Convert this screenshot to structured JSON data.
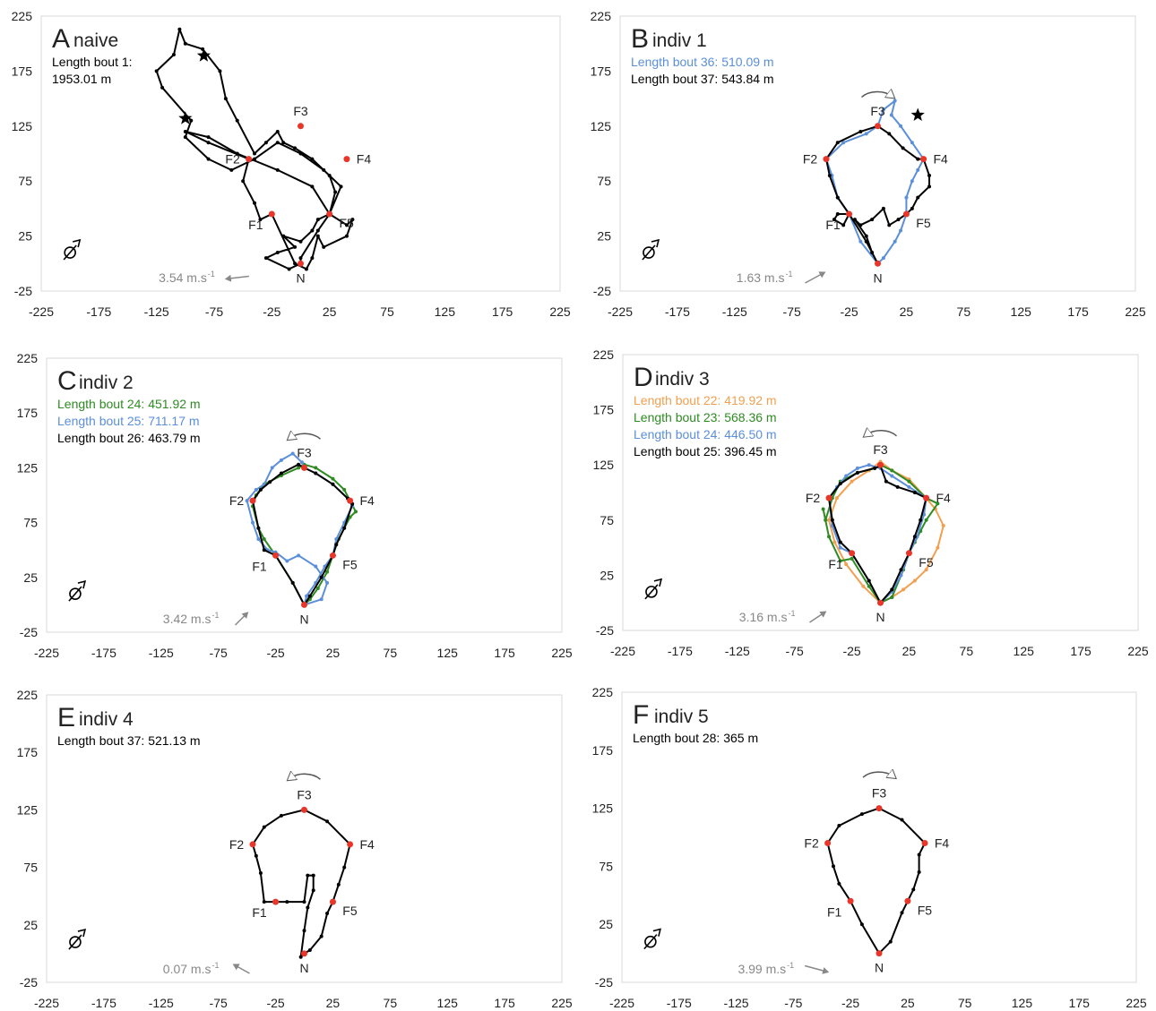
{
  "chart_data": [
    {
      "type": "line",
      "panel": "A",
      "title": "naive",
      "xlim": [
        -225,
        225
      ],
      "ylim": [
        -25,
        225
      ],
      "xticks": [
        -225,
        -175,
        -125,
        -75,
        -25,
        25,
        75,
        125,
        175,
        225
      ],
      "yticks": [
        -25,
        25,
        75,
        125,
        175,
        225
      ],
      "series": [
        {
          "name": "Length bout 1: 1953.01 m",
          "color": "#000000",
          "x": [
            0,
            -10,
            -30,
            -20,
            -5,
            -15,
            0,
            10,
            15,
            25,
            35,
            20,
            0,
            -20,
            -40,
            -60,
            -80,
            -100,
            -95,
            -120,
            -125,
            -110,
            -105,
            -100,
            -85,
            -70,
            -65,
            -55,
            -40,
            -30,
            -20,
            -15,
            -5,
            10,
            25,
            30,
            25,
            40,
            45,
            40,
            20,
            15,
            10,
            5,
            -5,
            -25,
            -35,
            -40,
            -50,
            -45,
            -80,
            -100,
            -80,
            -55,
            -20,
            10,
            25,
            15,
            0,
            0
          ],
          "y": [
            0,
            -5,
            5,
            10,
            15,
            25,
            20,
            30,
            40,
            45,
            70,
            85,
            100,
            110,
            95,
            85,
            95,
            115,
            130,
            160,
            175,
            190,
            213,
            200,
            195,
            175,
            150,
            130,
            100,
            110,
            120,
            110,
            105,
            95,
            80,
            65,
            45,
            35,
            40,
            25,
            15,
            25,
            5,
            -5,
            0,
            45,
            40,
            55,
            75,
            95,
            110,
            120,
            115,
            100,
            85,
            70,
            45,
            30,
            5,
            0
          ]
        }
      ],
      "points": {
        "labels": [
          "F1",
          "F2",
          "F3",
          "F4",
          "F5",
          "N"
        ],
        "x": [
          -25,
          -45,
          0,
          40,
          25,
          0
        ],
        "y": [
          45,
          95,
          125,
          95,
          45,
          0
        ],
        "color": "#e8362a"
      },
      "stars": {
        "x": [
          -84,
          -100
        ],
        "y": [
          189,
          132
        ]
      },
      "wind": {
        "label": "3.54 m.s",
        "superscript": "-1"
      }
    },
    {
      "type": "line",
      "panel": "B",
      "title": "indiv 1",
      "xlim": [
        -225,
        225
      ],
      "ylim": [
        -25,
        225
      ],
      "xticks": [
        -225,
        -175,
        -125,
        -75,
        -25,
        25,
        75,
        125,
        175,
        225
      ],
      "yticks": [
        -25,
        25,
        75,
        125,
        175,
        225
      ],
      "series": [
        {
          "name": "Length bout 36: 510.09 m",
          "color": "#5b8fd9",
          "x": [
            0,
            -15,
            -25,
            -35,
            -40,
            -45,
            -30,
            -10,
            0,
            5,
            15,
            12,
            20,
            30,
            40,
            35,
            30,
            25,
            25,
            20,
            15,
            5,
            0
          ],
          "y": [
            0,
            20,
            45,
            60,
            80,
            95,
            110,
            118,
            125,
            140,
            148,
            135,
            125,
            110,
            95,
            85,
            75,
            60,
            45,
            30,
            20,
            5,
            0
          ]
        },
        {
          "name": "Length bout 37: 543.84 m",
          "color": "#000000",
          "x": [
            0,
            -10,
            -25,
            -30,
            -38,
            -35,
            -25,
            -35,
            -42,
            -45,
            -35,
            -15,
            0,
            10,
            22,
            35,
            40,
            45,
            45,
            35,
            30,
            25,
            18,
            10,
            5,
            -5,
            -15,
            -20,
            -10,
            -5,
            0
          ],
          "y": [
            0,
            20,
            45,
            35,
            40,
            45,
            45,
            60,
            80,
            95,
            110,
            120,
            125,
            118,
            105,
            95,
            95,
            80,
            70,
            60,
            50,
            45,
            40,
            35,
            50,
            40,
            35,
            40,
            25,
            10,
            0
          ]
        }
      ],
      "points": {
        "labels": [
          "F1",
          "F2",
          "F3",
          "F4",
          "F5",
          "N"
        ],
        "x": [
          -25,
          -45,
          0,
          40,
          25,
          0
        ],
        "y": [
          45,
          95,
          125,
          95,
          45,
          0
        ],
        "color": "#e8362a"
      },
      "stars": {
        "x": [
          35
        ],
        "y": [
          135
        ]
      },
      "wind": {
        "label": "1.63 m.s",
        "superscript": "-1"
      }
    },
    {
      "type": "line",
      "panel": "C",
      "title": "indiv 2",
      "xlim": [
        -225,
        225
      ],
      "ylim": [
        -25,
        225
      ],
      "xticks": [
        -225,
        -175,
        -125,
        -75,
        -25,
        25,
        75,
        125,
        175,
        225
      ],
      "yticks": [
        -25,
        25,
        75,
        125,
        175,
        225
      ],
      "series": [
        {
          "name": "Length bout 24: 451.92 m",
          "color": "#2e8b22",
          "x": [
            0,
            -10,
            -25,
            -35,
            -40,
            -45,
            -42,
            -35,
            -20,
            -5,
            0,
            10,
            25,
            35,
            40,
            45,
            40,
            30,
            25,
            20,
            12,
            5,
            0
          ],
          "y": [
            0,
            20,
            45,
            60,
            70,
            90,
            100,
            110,
            118,
            125,
            128,
            125,
            115,
            105,
            95,
            85,
            80,
            60,
            45,
            30,
            15,
            5,
            0
          ]
        },
        {
          "name": "Length bout 25: 711.17 m",
          "color": "#5b8fd9",
          "x": [
            0,
            15,
            20,
            10,
            -5,
            -15,
            -25,
            -32,
            -40,
            -45,
            -50,
            -42,
            -35,
            -28,
            -20,
            -10,
            -2,
            0,
            10,
            25,
            38,
            42,
            35,
            28,
            25,
            18,
            10,
            2,
            0
          ],
          "y": [
            0,
            5,
            20,
            35,
            45,
            40,
            48,
            50,
            60,
            75,
            95,
            105,
            110,
            125,
            132,
            138,
            130,
            125,
            120,
            110,
            97,
            90,
            75,
            60,
            45,
            35,
            20,
            8,
            0
          ]
        },
        {
          "name": "Length bout 26: 463.79 m",
          "color": "#000000",
          "x": [
            0,
            -10,
            -25,
            -35,
            -40,
            -45,
            -38,
            -30,
            -20,
            -5,
            0,
            10,
            25,
            38,
            42,
            35,
            28,
            25,
            15,
            5,
            0
          ],
          "y": [
            0,
            20,
            45,
            50,
            70,
            95,
            105,
            112,
            120,
            128,
            125,
            120,
            110,
            97,
            92,
            70,
            55,
            45,
            25,
            8,
            0
          ]
        }
      ],
      "points": {
        "labels": [
          "F1",
          "F2",
          "F3",
          "F4",
          "F5",
          "N"
        ],
        "x": [
          -25,
          -45,
          0,
          40,
          25,
          0
        ],
        "y": [
          45,
          95,
          125,
          95,
          45,
          0
        ],
        "color": "#e8362a"
      },
      "wind": {
        "label": "3.42 m.s",
        "superscript": "-1"
      }
    },
    {
      "type": "line",
      "panel": "D",
      "title": "indiv 3",
      "xlim": [
        -225,
        225
      ],
      "ylim": [
        -25,
        225
      ],
      "xticks": [
        -225,
        -175,
        -125,
        -75,
        -25,
        25,
        75,
        125,
        175,
        225
      ],
      "yticks": [
        -25,
        25,
        75,
        125,
        175,
        225
      ],
      "series": [
        {
          "name": "Length bout 22: 419.92 m",
          "color": "#f0a050",
          "x": [
            0,
            -15,
            -30,
            -40,
            -45,
            -38,
            -25,
            -10,
            0,
            10,
            25,
            40,
            48,
            55,
            50,
            40,
            30,
            20,
            10,
            0
          ],
          "y": [
            0,
            15,
            35,
            55,
            75,
            95,
            110,
            120,
            128,
            120,
            112,
            95,
            85,
            70,
            50,
            30,
            20,
            12,
            5,
            0
          ]
        },
        {
          "name": "Length bout 23: 568.36 m",
          "color": "#2e8b22",
          "x": [
            0,
            -10,
            -25,
            -35,
            -45,
            -50,
            -48,
            -42,
            -35,
            -20,
            -5,
            0,
            10,
            25,
            40,
            50,
            40,
            35,
            30,
            25,
            20,
            10,
            0
          ],
          "y": [
            0,
            15,
            40,
            38,
            60,
            85,
            75,
            95,
            110,
            118,
            122,
            125,
            120,
            110,
            95,
            90,
            75,
            65,
            55,
            45,
            30,
            5,
            0
          ]
        },
        {
          "name": "Length bout 24: 446.50 m",
          "color": "#5b8fd9",
          "x": [
            0,
            -10,
            -25,
            -35,
            -42,
            -45,
            -38,
            -30,
            -20,
            -10,
            0,
            10,
            25,
            40,
            38,
            32,
            25,
            18,
            10,
            0
          ],
          "y": [
            0,
            20,
            45,
            50,
            70,
            95,
            105,
            115,
            122,
            125,
            122,
            115,
            105,
            95,
            80,
            60,
            45,
            25,
            10,
            0
          ]
        },
        {
          "name": "Length bout 25: 396.45 m",
          "color": "#000000",
          "x": [
            0,
            -10,
            -25,
            -35,
            -42,
            -45,
            -35,
            -20,
            -5,
            0,
            5,
            15,
            30,
            40,
            35,
            30,
            25,
            18,
            10,
            0
          ],
          "y": [
            0,
            20,
            45,
            55,
            75,
            95,
            108,
            118,
            122,
            124,
            110,
            105,
            100,
            95,
            75,
            60,
            45,
            30,
            12,
            0
          ]
        }
      ],
      "points": {
        "labels": [
          "F1",
          "F2",
          "F3",
          "F4",
          "F5",
          "N"
        ],
        "x": [
          -25,
          -45,
          0,
          40,
          25,
          0
        ],
        "y": [
          45,
          95,
          125,
          95,
          45,
          0
        ],
        "color": "#e8362a"
      },
      "wind": {
        "label": "3.16 m.s",
        "superscript": "-1"
      }
    },
    {
      "type": "line",
      "panel": "E",
      "title": "indiv 4",
      "xlim": [
        -225,
        225
      ],
      "ylim": [
        -25,
        225
      ],
      "xticks": [
        -225,
        -175,
        -125,
        -75,
        -25,
        25,
        75,
        125,
        175,
        225
      ],
      "yticks": [
        -25,
        25,
        75,
        125,
        175,
        225
      ],
      "series": [
        {
          "name": "Length bout 37: 521.13 m",
          "color": "#000000",
          "x": [
            -25,
            -35,
            -38,
            -42,
            -45,
            -35,
            -20,
            0,
            20,
            40,
            35,
            30,
            25,
            20,
            15,
            5,
            0,
            -3,
            0,
            3,
            8,
            8,
            3,
            0,
            -15,
            -25
          ],
          "y": [
            45,
            45,
            70,
            85,
            95,
            110,
            120,
            125,
            115,
            95,
            75,
            60,
            45,
            35,
            15,
            3,
            0,
            -3,
            20,
            40,
            55,
            68,
            68,
            45,
            45,
            45
          ]
        }
      ],
      "points": {
        "labels": [
          "F1",
          "F2",
          "F3",
          "F4",
          "F5",
          "N"
        ],
        "x": [
          -25,
          -45,
          0,
          40,
          25,
          0
        ],
        "y": [
          45,
          95,
          125,
          95,
          45,
          0
        ],
        "color": "#e8362a"
      },
      "wind": {
        "label": "0.07 m.s",
        "superscript": "-1"
      }
    },
    {
      "type": "line",
      "panel": "F",
      "title": "indiv 5",
      "xlim": [
        -225,
        225
      ],
      "ylim": [
        -25,
        225
      ],
      "xticks": [
        -225,
        -175,
        -125,
        -75,
        -25,
        25,
        75,
        125,
        175,
        225
      ],
      "yticks": [
        -25,
        25,
        75,
        125,
        175,
        225
      ],
      "series": [
        {
          "name": "Length bout 28: 365 m",
          "color": "#000000",
          "x": [
            0,
            -15,
            -25,
            -35,
            -40,
            -45,
            -35,
            -15,
            0,
            20,
            40,
            35,
            35,
            30,
            25,
            20,
            10,
            0
          ],
          "y": [
            0,
            25,
            45,
            60,
            75,
            95,
            110,
            120,
            125,
            115,
            95,
            85,
            70,
            55,
            45,
            35,
            10,
            0
          ]
        }
      ],
      "points": {
        "labels": [
          "F1",
          "F2",
          "F3",
          "F4",
          "F5",
          "N"
        ],
        "x": [
          -25,
          -45,
          0,
          40,
          25,
          0
        ],
        "y": [
          45,
          95,
          125,
          95,
          45,
          0
        ],
        "color": "#e8362a"
      },
      "wind": {
        "label": "3.99 m.s",
        "superscript": "-1"
      }
    }
  ]
}
